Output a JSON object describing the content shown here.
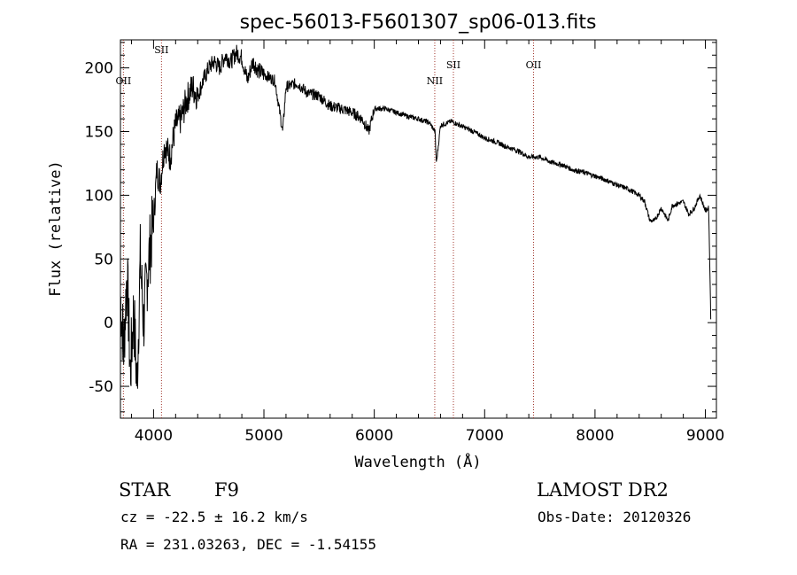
{
  "chart_data": {
    "type": "line",
    "title": "spec-56013-F5601307_sp06-013.fits",
    "xlabel": "Wavelength (Å)",
    "ylabel": "Flux (relative)",
    "xlim": [
      3700,
      9100
    ],
    "ylim": [
      -75,
      222
    ],
    "xticks": [
      4000,
      5000,
      6000,
      7000,
      8000,
      9000
    ],
    "yticks": [
      -50,
      0,
      50,
      100,
      150,
      200
    ],
    "grid": false,
    "series": [
      {
        "x": [
          3700,
          3730,
          3760,
          3790,
          3820,
          3850,
          3880,
          3910,
          3940,
          3970,
          4000,
          4030,
          4060,
          4100,
          4150,
          4200,
          4250,
          4300,
          4350,
          4400,
          4450,
          4500,
          4550,
          4600,
          4650,
          4700,
          4750,
          4800,
          4850,
          4900,
          4950,
          5000,
          5100,
          5170,
          5200,
          5300,
          5400,
          5500,
          5600,
          5700,
          5800,
          5890,
          5950,
          6000,
          6100,
          6200,
          6300,
          6400,
          6500,
          6550,
          6563,
          6600,
          6700,
          6800,
          6900,
          7000,
          7100,
          7200,
          7300,
          7400,
          7500,
          7600,
          7700,
          7800,
          7900,
          8000,
          8100,
          8200,
          8300,
          8400,
          8450,
          8498,
          8542,
          8600,
          8662,
          8700,
          8800,
          8850,
          8900,
          8950,
          9000,
          9030,
          9050
        ],
        "y": [
          20,
          -20,
          40,
          -40,
          10,
          -50,
          50,
          0,
          35,
          60,
          80,
          120,
          110,
          140,
          130,
          155,
          160,
          175,
          185,
          178,
          190,
          200,
          205,
          200,
          210,
          205,
          212,
          208,
          190,
          205,
          198,
          195,
          190,
          150,
          185,
          188,
          180,
          178,
          170,
          168,
          165,
          160,
          150,
          168,
          168,
          165,
          162,
          160,
          157,
          150,
          125,
          155,
          158,
          154,
          150,
          145,
          142,
          138,
          135,
          130,
          130,
          126,
          124,
          120,
          118,
          115,
          112,
          108,
          105,
          100,
          95,
          80,
          80,
          90,
          80,
          92,
          95,
          85,
          90,
          100,
          88,
          90,
          0
        ]
      }
    ],
    "lines": [
      {
        "name": "OII",
        "x": 3727
      },
      {
        "name": "SII",
        "x": 4072
      },
      {
        "name": "NII",
        "x": 6548
      },
      {
        "name": "SII",
        "x": 6717
      },
      {
        "name": "OII",
        "x": 7443
      }
    ]
  },
  "info": {
    "object_class": "STAR",
    "subclass": "F9",
    "survey": "LAMOST DR2",
    "redshift": "cz = -22.5 ± 16.2 km/s",
    "obs_date": "Obs-Date: 20120326",
    "coords": "RA = 231.03263, DEC =  -1.54155"
  }
}
